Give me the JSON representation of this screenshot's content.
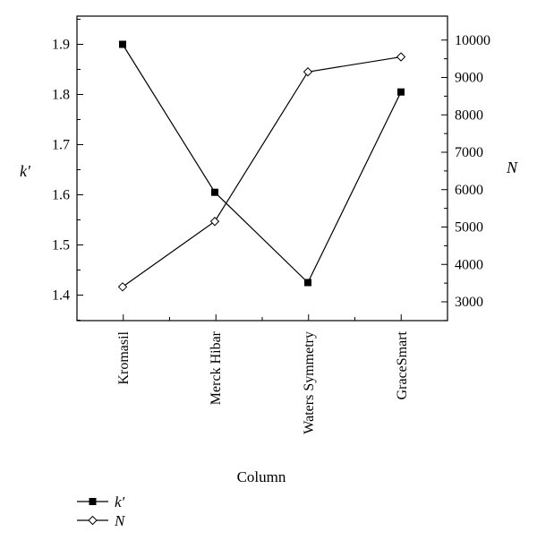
{
  "chart_data": {
    "type": "line",
    "categories": [
      "Kromasil",
      "Merck Hibar",
      "Waters Symmetry",
      "GraceSmart"
    ],
    "xlabel": "Column",
    "ylabel_left": "k′",
    "ylabel_right": "N",
    "ylim_left": [
      1.35,
      1.95
    ],
    "ylim_right": [
      2500,
      10300
    ],
    "yticks_left": [
      "1.4",
      "1.5",
      "1.6",
      "1.7",
      "1.8",
      "1.9"
    ],
    "yticks_right": [
      "3000",
      "4000",
      "5000",
      "6000",
      "7000",
      "8000",
      "9000",
      "10000"
    ],
    "series": [
      {
        "name": "k′",
        "axis": "left",
        "marker": "filled-square",
        "values": [
          1.9,
          1.605,
          1.425,
          1.805
        ]
      },
      {
        "name": "N",
        "axis": "right",
        "marker": "open-diamond",
        "values": [
          3400,
          5150,
          9150,
          9550
        ]
      }
    ],
    "legend_position": "bottom-left",
    "grid": false
  }
}
